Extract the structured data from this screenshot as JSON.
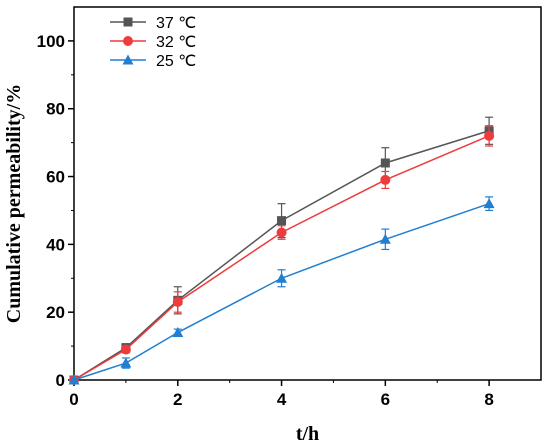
{
  "chart_data": {
    "type": "line",
    "xlabel": "t/h",
    "ylabel": "Cumulative permeability/%",
    "xlim": [
      0,
      9
    ],
    "ylim": [
      0,
      110
    ],
    "x_ticks": [
      0,
      2,
      4,
      6,
      8
    ],
    "y_ticks": [
      0,
      20,
      40,
      60,
      80,
      100
    ],
    "legend_position": "top-left",
    "grid": false,
    "x": [
      0,
      1,
      2,
      4,
      6,
      8
    ],
    "series": [
      {
        "name": "37 ℃",
        "color": "#555555",
        "marker": "square",
        "values": [
          0,
          9.5,
          23.5,
          47,
          64,
          73.5
        ],
        "errors": [
          0,
          1.2,
          4,
          5,
          4.5,
          4
        ]
      },
      {
        "name": "32 ℃",
        "color": "#ee3b3b",
        "marker": "circle",
        "values": [
          0,
          9,
          23,
          43.5,
          59,
          72
        ],
        "errors": [
          0,
          1,
          3,
          2,
          2.5,
          3
        ]
      },
      {
        "name": "25 ℃",
        "color": "#1f7fd0",
        "marker": "triangle",
        "values": [
          0,
          5,
          14,
          30,
          41.5,
          52
        ],
        "errors": [
          0,
          1.5,
          1,
          2.5,
          3,
          2
        ]
      }
    ]
  }
}
